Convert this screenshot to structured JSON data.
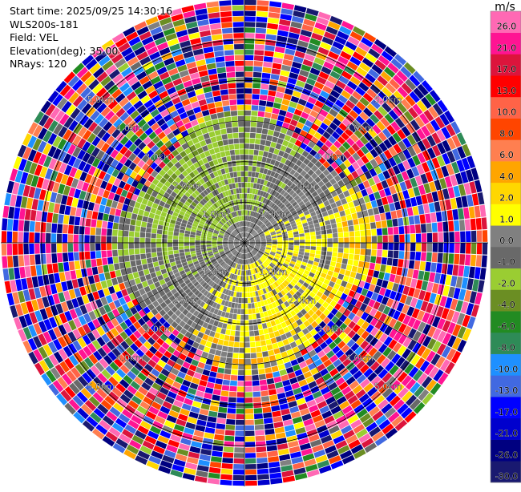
{
  "info": {
    "start_time": "Start time: 2025/09/25 14:30:16",
    "station": "WLS200s-181",
    "field": "Field: VEL",
    "elevation": "Elevation(deg): 35.00",
    "nrays": "NRays: 120"
  },
  "colorbar": {
    "unit": "m/s",
    "boundaries": [
      -30.0,
      -26.0,
      -21.0,
      -17.0,
      -13.0,
      -10.0,
      -8.0,
      -6.0,
      -4.0,
      -2.0,
      -1.0,
      0.0,
      1.0,
      2.0,
      4.0,
      6.0,
      8.0,
      10.0,
      13.0,
      17.0,
      21.0,
      26.0,
      30.0
    ],
    "tick_labels": [
      "-30.0",
      "-26.0",
      "-21.0",
      "-17.0",
      "-13.0",
      "-10.0",
      "-8.0",
      "-6.0",
      "-4.0",
      "-2.0",
      "-1.0",
      "0.0",
      "1.0",
      "2.0",
      "4.0",
      "6.0",
      "8.0",
      "10.0",
      "13.0",
      "17.0",
      "21.0",
      "26.0"
    ],
    "colors": [
      "#191970",
      "#000080",
      "#0000cd",
      "#0000ff",
      "#4169e1",
      "#1e90ff",
      "#2e8b57",
      "#228b22",
      "#6b8e23",
      "#9acd32",
      "#696969",
      "#808080",
      "#ffff00",
      "#ffd700",
      "#ffa500",
      "#ff7f50",
      "#ff4500",
      "#ff6347",
      "#ff0000",
      "#dc143c",
      "#ff1493",
      "#ff69b4"
    ]
  },
  "chart_data": {
    "type": "ppi",
    "field": "VEL",
    "units": "m/s",
    "elevation_deg": 35.0,
    "n_rays": 120,
    "range_ring_labels": [
      "1.0km",
      "2.0km",
      "3.0km",
      "4.0km",
      "5.0km"
    ],
    "observed_range_km": 6.0,
    "pattern": {
      "inner_core_km": 0.6,
      "inner_value": 0.0,
      "valid_range_km": 3.0,
      "approaching_sector": "north-west, -1 to -2 m/s",
      "receding_sector": "south-east, +1 to +2 m/s",
      "outer_noise": "random values beyond ~3 km"
    }
  }
}
